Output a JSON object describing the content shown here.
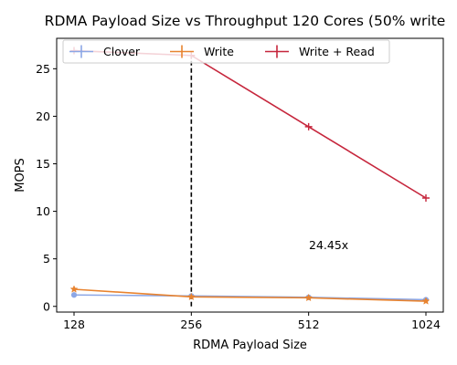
{
  "chart_data": {
    "type": "line",
    "title": "RDMA Payload Size vs Throughput 120 Cores (50% write",
    "xlabel": "RDMA Payload Size",
    "ylabel": "MOPS",
    "x": [
      "128",
      "256",
      "512",
      "1024"
    ],
    "ylim": [
      -0.6,
      28.2
    ],
    "yticks": [
      "0",
      "5",
      "10",
      "15",
      "20",
      "25"
    ],
    "grid": false,
    "legend_position": "top-left",
    "series": [
      {
        "name": "Clover",
        "values": [
          1.2,
          1.1,
          0.95,
          0.7
        ],
        "color": "#8ca7e6",
        "marker": "circle"
      },
      {
        "name": "Write",
        "values": [
          1.8,
          1.0,
          0.9,
          0.55
        ],
        "color": "#e8832f",
        "marker": "star"
      },
      {
        "name": "Write + Read",
        "values": [
          26.9,
          26.4,
          18.9,
          11.4
        ],
        "color": "#c6263c",
        "marker": "plus"
      }
    ],
    "vertical_line": {
      "x": "256",
      "y_from": 0,
      "y_to": 26.4,
      "style": "dashed",
      "color": "#000000"
    },
    "annotation": {
      "text": "24.45x",
      "x": "512",
      "y": 5.9
    }
  }
}
